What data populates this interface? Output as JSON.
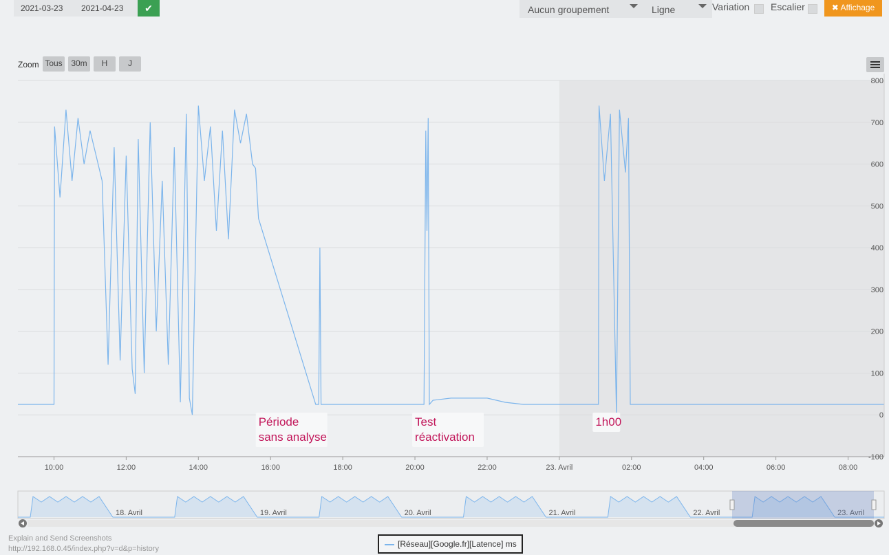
{
  "toolbar": {
    "date_start": "2021-03-23",
    "date_end": "2021-04-23",
    "grouping": "Aucun groupement",
    "chart_kind": "Ligne",
    "variation_label": "Variation",
    "escalier_label": "Escalier",
    "affichage_label": "Affichage"
  },
  "zoom": {
    "label": "Zoom",
    "buttons": [
      "Tous",
      "30m",
      "H",
      "J"
    ]
  },
  "colors": {
    "series": "#7cb5ec",
    "annotation": "#c2185b",
    "confirm": "#3ba053",
    "affichage": "#f0961e"
  },
  "chart_data": {
    "type": "line",
    "x_axis_type": "datetime",
    "xlim": [
      "2021-04-22 09:00",
      "2021-04-23 09:00"
    ],
    "ylim": [
      -100,
      800
    ],
    "yticks": [
      800,
      700,
      600,
      500,
      400,
      300,
      200,
      100,
      0,
      -100
    ],
    "xticks": [
      "10:00",
      "12:00",
      "14:00",
      "16:00",
      "18:00",
      "20:00",
      "22:00",
      "23. Avril",
      "02:00",
      "04:00",
      "06:00",
      "08:00"
    ],
    "highlighted_band_start": "2021-04-23 00:00",
    "grid": true,
    "legend": "bottom-center",
    "series": [
      {
        "name": "[Réseau][Google.fr][Latence] ms",
        "points": [
          [
            "2021-04-22 09:00",
            25
          ],
          [
            "2021-04-22 09:30",
            25
          ],
          [
            "2021-04-22 10:00",
            25
          ],
          [
            "2021-04-22 10:01",
            690
          ],
          [
            "2021-04-22 10:10",
            520
          ],
          [
            "2021-04-22 10:20",
            730
          ],
          [
            "2021-04-22 10:30",
            560
          ],
          [
            "2021-04-22 10:40",
            710
          ],
          [
            "2021-04-22 10:50",
            600
          ],
          [
            "2021-04-22 11:00",
            680
          ],
          [
            "2021-04-22 11:10",
            620
          ],
          [
            "2021-04-22 11:20",
            560
          ],
          [
            "2021-04-22 11:30",
            120
          ],
          [
            "2021-04-22 11:40",
            640
          ],
          [
            "2021-04-22 11:50",
            130
          ],
          [
            "2021-04-22 12:00",
            620
          ],
          [
            "2021-04-22 12:10",
            110
          ],
          [
            "2021-04-22 12:15",
            50
          ],
          [
            "2021-04-22 12:20",
            660
          ],
          [
            "2021-04-22 12:30",
            100
          ],
          [
            "2021-04-22 12:40",
            700
          ],
          [
            "2021-04-22 12:50",
            200
          ],
          [
            "2021-04-22 13:00",
            560
          ],
          [
            "2021-04-22 13:10",
            120
          ],
          [
            "2021-04-22 13:20",
            640
          ],
          [
            "2021-04-22 13:30",
            30
          ],
          [
            "2021-04-22 13:40",
            720
          ],
          [
            "2021-04-22 13:45",
            40
          ],
          [
            "2021-04-22 13:50",
            0
          ],
          [
            "2021-04-22 14:00",
            740
          ],
          [
            "2021-04-22 14:10",
            560
          ],
          [
            "2021-04-22 14:20",
            690
          ],
          [
            "2021-04-22 14:30",
            440
          ],
          [
            "2021-04-22 14:40",
            680
          ],
          [
            "2021-04-22 14:50",
            420
          ],
          [
            "2021-04-22 15:00",
            730
          ],
          [
            "2021-04-22 15:10",
            650
          ],
          [
            "2021-04-22 15:20",
            720
          ],
          [
            "2021-04-22 15:30",
            600
          ],
          [
            "2021-04-22 15:35",
            590
          ],
          [
            "2021-04-22 15:40",
            470
          ],
          [
            "2021-04-22 17:15",
            25
          ],
          [
            "2021-04-22 17:20",
            25
          ],
          [
            "2021-04-22 17:22",
            400
          ],
          [
            "2021-04-22 17:24",
            25
          ],
          [
            "2021-04-22 18:00",
            25
          ],
          [
            "2021-04-22 19:00",
            25
          ],
          [
            "2021-04-22 20:15",
            25
          ],
          [
            "2021-04-22 20:18",
            680
          ],
          [
            "2021-04-22 20:20",
            440
          ],
          [
            "2021-04-22 20:22",
            710
          ],
          [
            "2021-04-22 20:24",
            25
          ],
          [
            "2021-04-22 20:30",
            35
          ],
          [
            "2021-04-22 21:00",
            40
          ],
          [
            "2021-04-22 21:30",
            40
          ],
          [
            "2021-04-22 22:00",
            40
          ],
          [
            "2021-04-22 22:30",
            30
          ],
          [
            "2021-04-22 23:00",
            25
          ],
          [
            "2021-04-23 00:00",
            25
          ],
          [
            "2021-04-23 01:05",
            25
          ],
          [
            "2021-04-23 01:06",
            740
          ],
          [
            "2021-04-23 01:15",
            560
          ],
          [
            "2021-04-23 01:25",
            720
          ],
          [
            "2021-04-23 01:35",
            0
          ],
          [
            "2021-04-23 01:40",
            730
          ],
          [
            "2021-04-23 01:50",
            580
          ],
          [
            "2021-04-23 01:55",
            710
          ],
          [
            "2021-04-23 01:58",
            25
          ],
          [
            "2021-04-23 03:00",
            25
          ],
          [
            "2021-04-23 05:00",
            25
          ],
          [
            "2021-04-23 07:00",
            25
          ],
          [
            "2021-04-23 09:00",
            25
          ]
        ]
      }
    ],
    "annotations": [
      {
        "x": "2021-04-22 15:40",
        "lines": [
          "Période",
          "sans analyse"
        ]
      },
      {
        "x": "2021-04-22 20:00",
        "lines": [
          "Test",
          "réactivation"
        ]
      },
      {
        "x": "2021-04-23 01:00",
        "lines": [
          "1h00"
        ]
      }
    ],
    "navigator": {
      "labels": [
        "18. Avril",
        "19. Avril",
        "20. Avril",
        "21. Avril",
        "22. Avril",
        "23. Avril"
      ],
      "selected_range": [
        "2021-04-22 09:00",
        "2021-04-23 09:00"
      ]
    }
  },
  "footer": {
    "line1": "Explain and Send Screenshots",
    "line2": "http://192.168.0.45/index.php?v=d&p=history"
  }
}
